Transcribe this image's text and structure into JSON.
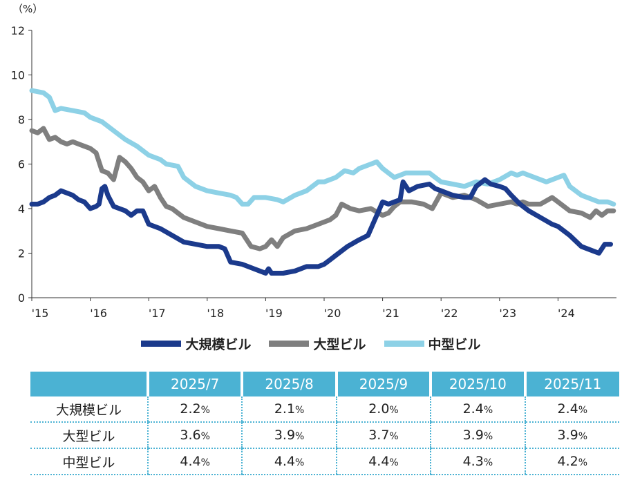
{
  "chart_data": {
    "type": "line",
    "unit_label": "（%）",
    "ylim": [
      0,
      12
    ],
    "yticks": [
      0,
      2,
      4,
      6,
      8,
      10,
      12
    ],
    "xlim": [
      2015.0,
      2025.0
    ],
    "xticks": [
      {
        "value": 2015,
        "label": "'15"
      },
      {
        "value": 2016,
        "label": "'16"
      },
      {
        "value": 2017,
        "label": "'17"
      },
      {
        "value": 2018,
        "label": "'18"
      },
      {
        "value": 2019,
        "label": "'19"
      },
      {
        "value": 2020,
        "label": "'20"
      },
      {
        "value": 2021,
        "label": "'21"
      },
      {
        "value": 2022,
        "label": "'22"
      },
      {
        "value": 2023,
        "label": "'23"
      },
      {
        "value": 2024,
        "label": "'24"
      }
    ],
    "grid": false,
    "legend_position": "bottom",
    "series": [
      {
        "name": "大規模ビル",
        "color": "#1b3a8c",
        "points": [
          [
            2015.0,
            4.2
          ],
          [
            2015.1,
            4.2
          ],
          [
            2015.2,
            4.3
          ],
          [
            2015.3,
            4.5
          ],
          [
            2015.4,
            4.6
          ],
          [
            2015.5,
            4.8
          ],
          [
            2015.6,
            4.7
          ],
          [
            2015.7,
            4.6
          ],
          [
            2015.8,
            4.4
          ],
          [
            2015.9,
            4.3
          ],
          [
            2016.0,
            4.0
          ],
          [
            2016.1,
            4.1
          ],
          [
            2016.15,
            4.2
          ],
          [
            2016.2,
            4.9
          ],
          [
            2016.25,
            5.0
          ],
          [
            2016.3,
            4.6
          ],
          [
            2016.4,
            4.1
          ],
          [
            2016.5,
            4.0
          ],
          [
            2016.6,
            3.9
          ],
          [
            2016.7,
            3.7
          ],
          [
            2016.8,
            3.9
          ],
          [
            2016.9,
            3.9
          ],
          [
            2017.0,
            3.3
          ],
          [
            2017.2,
            3.1
          ],
          [
            2017.4,
            2.8
          ],
          [
            2017.6,
            2.5
          ],
          [
            2017.8,
            2.4
          ],
          [
            2018.0,
            2.3
          ],
          [
            2018.2,
            2.3
          ],
          [
            2018.3,
            2.2
          ],
          [
            2018.4,
            1.6
          ],
          [
            2018.6,
            1.5
          ],
          [
            2018.8,
            1.3
          ],
          [
            2018.9,
            1.2
          ],
          [
            2019.0,
            1.1
          ],
          [
            2019.05,
            1.3
          ],
          [
            2019.1,
            1.1
          ],
          [
            2019.3,
            1.1
          ],
          [
            2019.5,
            1.2
          ],
          [
            2019.7,
            1.4
          ],
          [
            2019.9,
            1.4
          ],
          [
            2020.0,
            1.5
          ],
          [
            2020.1,
            1.7
          ],
          [
            2020.2,
            1.9
          ],
          [
            2020.4,
            2.3
          ],
          [
            2020.6,
            2.6
          ],
          [
            2020.75,
            2.8
          ],
          [
            2020.85,
            3.4
          ],
          [
            2021.0,
            4.3
          ],
          [
            2021.1,
            4.2
          ],
          [
            2021.2,
            4.3
          ],
          [
            2021.3,
            4.4
          ],
          [
            2021.35,
            5.2
          ],
          [
            2021.45,
            4.8
          ],
          [
            2021.6,
            5.0
          ],
          [
            2021.8,
            5.1
          ],
          [
            2021.9,
            4.9
          ],
          [
            2022.0,
            4.8
          ],
          [
            2022.2,
            4.6
          ],
          [
            2022.4,
            4.5
          ],
          [
            2022.5,
            4.5
          ],
          [
            2022.6,
            5.0
          ],
          [
            2022.75,
            5.3
          ],
          [
            2022.85,
            5.1
          ],
          [
            2023.0,
            5.0
          ],
          [
            2023.1,
            4.9
          ],
          [
            2023.2,
            4.6
          ],
          [
            2023.35,
            4.2
          ],
          [
            2023.5,
            3.9
          ],
          [
            2023.7,
            3.6
          ],
          [
            2023.9,
            3.3
          ],
          [
            2024.0,
            3.2
          ],
          [
            2024.2,
            2.8
          ],
          [
            2024.4,
            2.3
          ],
          [
            2024.6,
            2.1
          ],
          [
            2024.7,
            2.0
          ],
          [
            2024.8,
            2.4
          ],
          [
            2024.9,
            2.4
          ]
        ]
      },
      {
        "name": "大型ビル",
        "color": "#7f7f7f",
        "points": [
          [
            2015.0,
            7.5
          ],
          [
            2015.1,
            7.4
          ],
          [
            2015.2,
            7.6
          ],
          [
            2015.3,
            7.1
          ],
          [
            2015.4,
            7.2
          ],
          [
            2015.5,
            7.0
          ],
          [
            2015.6,
            6.9
          ],
          [
            2015.7,
            7.0
          ],
          [
            2015.8,
            6.9
          ],
          [
            2015.9,
            6.8
          ],
          [
            2016.0,
            6.7
          ],
          [
            2016.1,
            6.5
          ],
          [
            2016.2,
            5.7
          ],
          [
            2016.3,
            5.6
          ],
          [
            2016.4,
            5.3
          ],
          [
            2016.5,
            6.3
          ],
          [
            2016.6,
            6.1
          ],
          [
            2016.7,
            5.8
          ],
          [
            2016.8,
            5.4
          ],
          [
            2016.9,
            5.2
          ],
          [
            2017.0,
            4.8
          ],
          [
            2017.1,
            5.0
          ],
          [
            2017.2,
            4.5
          ],
          [
            2017.3,
            4.1
          ],
          [
            2017.4,
            4.0
          ],
          [
            2017.6,
            3.6
          ],
          [
            2017.8,
            3.4
          ],
          [
            2018.0,
            3.2
          ],
          [
            2018.2,
            3.1
          ],
          [
            2018.4,
            3.0
          ],
          [
            2018.6,
            2.9
          ],
          [
            2018.75,
            2.3
          ],
          [
            2018.9,
            2.2
          ],
          [
            2019.0,
            2.3
          ],
          [
            2019.1,
            2.6
          ],
          [
            2019.2,
            2.3
          ],
          [
            2019.3,
            2.7
          ],
          [
            2019.5,
            3.0
          ],
          [
            2019.7,
            3.1
          ],
          [
            2019.9,
            3.3
          ],
          [
            2020.0,
            3.4
          ],
          [
            2020.1,
            3.5
          ],
          [
            2020.2,
            3.7
          ],
          [
            2020.3,
            4.2
          ],
          [
            2020.45,
            4.0
          ],
          [
            2020.6,
            3.9
          ],
          [
            2020.8,
            4.0
          ],
          [
            2021.0,
            3.7
          ],
          [
            2021.1,
            3.8
          ],
          [
            2021.2,
            4.1
          ],
          [
            2021.3,
            4.3
          ],
          [
            2021.5,
            4.3
          ],
          [
            2021.7,
            4.2
          ],
          [
            2021.85,
            4.0
          ],
          [
            2022.0,
            4.7
          ],
          [
            2022.2,
            4.5
          ],
          [
            2022.4,
            4.6
          ],
          [
            2022.6,
            4.4
          ],
          [
            2022.8,
            4.1
          ],
          [
            2023.0,
            4.2
          ],
          [
            2023.2,
            4.3
          ],
          [
            2023.3,
            4.2
          ],
          [
            2023.4,
            4.3
          ],
          [
            2023.5,
            4.2
          ],
          [
            2023.7,
            4.2
          ],
          [
            2023.9,
            4.5
          ],
          [
            2024.0,
            4.3
          ],
          [
            2024.2,
            3.9
          ],
          [
            2024.4,
            3.8
          ],
          [
            2024.55,
            3.6
          ],
          [
            2024.65,
            3.9
          ],
          [
            2024.75,
            3.7
          ],
          [
            2024.85,
            3.9
          ],
          [
            2024.95,
            3.9
          ]
        ]
      },
      {
        "name": "中型ビル",
        "color": "#8dd1e6",
        "points": [
          [
            2015.0,
            9.3
          ],
          [
            2015.2,
            9.2
          ],
          [
            2015.3,
            9.0
          ],
          [
            2015.4,
            8.4
          ],
          [
            2015.5,
            8.5
          ],
          [
            2015.7,
            8.4
          ],
          [
            2015.9,
            8.3
          ],
          [
            2016.0,
            8.1
          ],
          [
            2016.2,
            7.9
          ],
          [
            2016.4,
            7.5
          ],
          [
            2016.6,
            7.1
          ],
          [
            2016.8,
            6.8
          ],
          [
            2017.0,
            6.4
          ],
          [
            2017.2,
            6.2
          ],
          [
            2017.3,
            6.0
          ],
          [
            2017.5,
            5.9
          ],
          [
            2017.6,
            5.4
          ],
          [
            2017.8,
            5.0
          ],
          [
            2018.0,
            4.8
          ],
          [
            2018.2,
            4.7
          ],
          [
            2018.4,
            4.6
          ],
          [
            2018.5,
            4.5
          ],
          [
            2018.6,
            4.2
          ],
          [
            2018.7,
            4.2
          ],
          [
            2018.8,
            4.5
          ],
          [
            2019.0,
            4.5
          ],
          [
            2019.2,
            4.4
          ],
          [
            2019.3,
            4.3
          ],
          [
            2019.5,
            4.6
          ],
          [
            2019.7,
            4.8
          ],
          [
            2019.9,
            5.2
          ],
          [
            2020.0,
            5.2
          ],
          [
            2020.2,
            5.4
          ],
          [
            2020.35,
            5.7
          ],
          [
            2020.5,
            5.6
          ],
          [
            2020.6,
            5.8
          ],
          [
            2020.8,
            6.0
          ],
          [
            2020.9,
            6.1
          ],
          [
            2021.0,
            5.8
          ],
          [
            2021.2,
            5.4
          ],
          [
            2021.4,
            5.6
          ],
          [
            2021.6,
            5.6
          ],
          [
            2021.8,
            5.6
          ],
          [
            2022.0,
            5.2
          ],
          [
            2022.2,
            5.1
          ],
          [
            2022.4,
            5.0
          ],
          [
            2022.6,
            5.2
          ],
          [
            2022.8,
            5.1
          ],
          [
            2023.0,
            5.3
          ],
          [
            2023.2,
            5.6
          ],
          [
            2023.3,
            5.5
          ],
          [
            2023.4,
            5.6
          ],
          [
            2023.6,
            5.4
          ],
          [
            2023.8,
            5.2
          ],
          [
            2024.0,
            5.4
          ],
          [
            2024.1,
            5.5
          ],
          [
            2024.2,
            5.0
          ],
          [
            2024.4,
            4.6
          ],
          [
            2024.6,
            4.4
          ],
          [
            2024.7,
            4.3
          ],
          [
            2024.85,
            4.3
          ],
          [
            2024.95,
            4.2
          ]
        ]
      }
    ]
  },
  "table": {
    "headers": [
      "2025/7",
      "2025/8",
      "2025/9",
      "2025/10",
      "2025/11"
    ],
    "pct_sign": "%",
    "rows": [
      {
        "label": "大規模ビル",
        "values": [
          "2.2",
          "2.1",
          "2.0",
          "2.4",
          "2.4"
        ]
      },
      {
        "label": "大型ビル",
        "values": [
          "3.6",
          "3.9",
          "3.7",
          "3.9",
          "3.9"
        ]
      },
      {
        "label": "中型ビル",
        "values": [
          "4.4",
          "4.4",
          "4.4",
          "4.3",
          "4.2"
        ]
      }
    ]
  }
}
